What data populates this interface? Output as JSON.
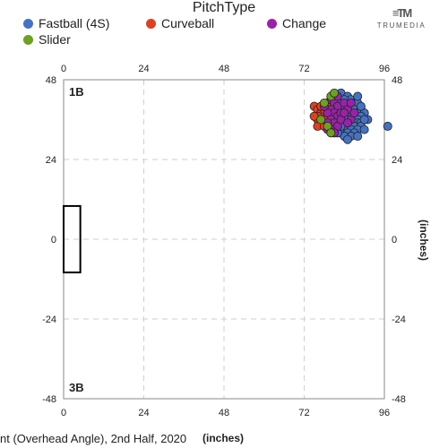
{
  "legend": {
    "title": "PitchType",
    "items": [
      {
        "label": "Fastball (4S)",
        "color": "#4472c4"
      },
      {
        "label": "Curveball",
        "color": "#e0401f"
      },
      {
        "label": "Change",
        "color": "#9b22a8"
      },
      {
        "label": "Slider",
        "color": "#6ea21e"
      }
    ]
  },
  "brand": {
    "mark": "≡TM",
    "name": "TRUMEDIA"
  },
  "plot": {
    "corner_top": "1B",
    "corner_bottom": "3B",
    "footer_text": "nt (Overhead Angle), 2nd Half, 2020",
    "x_title": "(inches)",
    "y_title": "(inches)"
  },
  "chart_data": {
    "type": "scatter",
    "xlim": [
      0,
      96
    ],
    "ylim": [
      -48,
      48
    ],
    "xticks": [
      0,
      24,
      48,
      72,
      96
    ],
    "yticks": [
      48,
      24,
      0,
      -24,
      -48
    ],
    "grid": true,
    "legend_position": "top-left",
    "base_rect": {
      "x": [
        0,
        5
      ],
      "y": [
        -10,
        10
      ]
    },
    "series": [
      {
        "name": "Fastball (4S)",
        "color": "#4472c4",
        "points": [
          [
            83,
            44
          ],
          [
            85,
            43
          ],
          [
            86,
            42
          ],
          [
            84,
            42
          ],
          [
            87,
            41
          ],
          [
            88,
            41
          ],
          [
            82,
            41
          ],
          [
            85,
            40
          ],
          [
            86,
            40
          ],
          [
            84,
            40
          ],
          [
            87,
            39
          ],
          [
            89,
            39
          ],
          [
            83,
            39
          ],
          [
            85,
            38
          ],
          [
            86,
            38
          ],
          [
            88,
            38
          ],
          [
            90,
            38
          ],
          [
            82,
            38
          ],
          [
            84,
            37
          ],
          [
            86,
            37
          ],
          [
            87,
            37
          ],
          [
            89,
            37
          ],
          [
            83,
            36
          ],
          [
            85,
            36
          ],
          [
            87,
            36
          ],
          [
            88,
            36
          ],
          [
            91,
            36
          ],
          [
            84,
            35
          ],
          [
            86,
            35
          ],
          [
            88,
            35
          ],
          [
            89,
            35
          ],
          [
            82,
            35
          ],
          [
            85,
            34
          ],
          [
            87,
            34
          ],
          [
            89,
            34
          ],
          [
            84,
            33
          ],
          [
            86,
            33
          ],
          [
            88,
            33
          ],
          [
            83,
            32
          ],
          [
            85,
            32
          ],
          [
            87,
            32
          ],
          [
            86,
            31
          ],
          [
            88,
            31
          ],
          [
            84,
            31
          ],
          [
            82,
            32
          ],
          [
            81,
            37
          ],
          [
            90,
            36
          ],
          [
            89,
            40
          ],
          [
            83,
            34
          ],
          [
            88,
            43
          ],
          [
            80,
            34
          ],
          [
            90,
            33
          ],
          [
            85,
            30
          ],
          [
            97,
            34
          ]
        ]
      },
      {
        "name": "Curveball",
        "color": "#e0401f",
        "points": [
          [
            75,
            40
          ],
          [
            76,
            39
          ],
          [
            77,
            38
          ],
          [
            76,
            37
          ],
          [
            78,
            36
          ],
          [
            77,
            35
          ],
          [
            76,
            36
          ],
          [
            75,
            37
          ],
          [
            78,
            39
          ],
          [
            77,
            40
          ],
          [
            79,
            37
          ],
          [
            76,
            34
          ],
          [
            78,
            34
          ],
          [
            79,
            41
          ],
          [
            80,
            39
          ]
        ]
      },
      {
        "name": "Change",
        "color": "#9b22a8",
        "points": [
          [
            80,
            42
          ],
          [
            81,
            41
          ],
          [
            82,
            40
          ],
          [
            80,
            39
          ],
          [
            81,
            38
          ],
          [
            79,
            38
          ],
          [
            82,
            37
          ],
          [
            80,
            36
          ],
          [
            83,
            38
          ],
          [
            81,
            35
          ],
          [
            79,
            35
          ],
          [
            82,
            34
          ],
          [
            84,
            41
          ],
          [
            85,
            39
          ],
          [
            86,
            36
          ],
          [
            80,
            33
          ],
          [
            83,
            36
          ],
          [
            84,
            38
          ],
          [
            86,
            41
          ],
          [
            87,
            38
          ],
          [
            78,
            40
          ],
          [
            82,
            43
          ],
          [
            85,
            35
          ],
          [
            79,
            33
          ],
          [
            81,
            32
          ]
        ]
      },
      {
        "name": "Slider",
        "color": "#6ea21e",
        "points": [
          [
            80,
            43
          ],
          [
            78,
            41
          ],
          [
            79,
            34
          ],
          [
            80,
            32
          ],
          [
            77,
            36
          ],
          [
            81,
            44
          ]
        ]
      }
    ]
  }
}
